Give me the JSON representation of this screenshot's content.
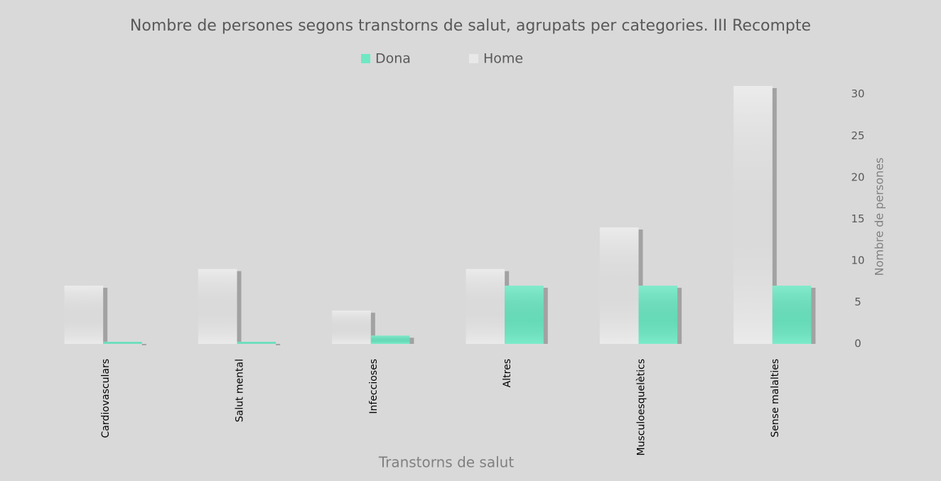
{
  "chart_data": {
    "type": "bar",
    "title": "Nombre de persones segons transtorns de salut, agrupats per categories. III Recompte",
    "categories": [
      "Cardiovasculars",
      "Salut mental",
      "Infeccioses",
      "Altres",
      "Musculoesquelètics",
      "Sense malalties"
    ],
    "series": [
      {
        "name": "Dona",
        "color": "#6de8c3",
        "values": [
          0,
          0,
          1,
          7,
          7,
          7
        ]
      },
      {
        "name": "Home",
        "color": "#e8e8e8",
        "values": [
          7,
          9,
          4,
          9,
          14,
          31
        ]
      }
    ],
    "x_label": "Transtorns de salut",
    "y_label": "Nombre de persones",
    "ylim": [
      0,
      31
    ],
    "yticks": [
      0,
      5,
      10,
      15,
      20,
      25,
      30
    ],
    "y_axis_side": "right",
    "grid": false,
    "legend_position": "top"
  }
}
